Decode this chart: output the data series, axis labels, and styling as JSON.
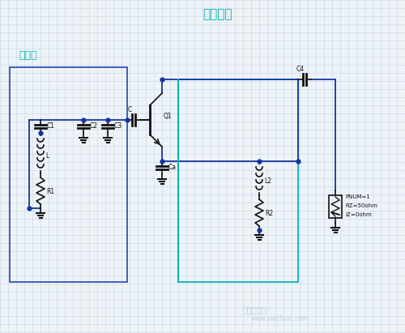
{
  "bg_color": "#eef3f8",
  "grid_color": "#c5d5e5",
  "wire_color": "#1535a0",
  "black": "#111111",
  "cyan_box": "#00b5b5",
  "blue_box": "#3355b0",
  "label_cyan": "#00c0c0",
  "resonator_label": "谐振器",
  "neg_res_label": "负阻电路",
  "watermark": "电子发烧友",
  "watermark2": "www.alecfans.com",
  "pnum": "PNUM=1",
  "rz": "RZ=50ohm",
  "iz": "IZ=0ohm"
}
